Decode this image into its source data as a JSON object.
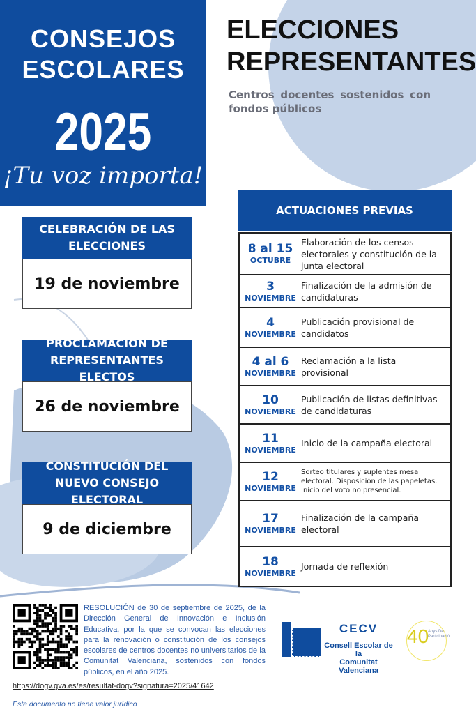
{
  "colors": {
    "primary": "#0f4c9e",
    "light": "#c4d3e8",
    "date": "#1451a6"
  },
  "hero": {
    "line1": "CONSEJOS",
    "line2": "ESCOLARES",
    "year": "2025",
    "slogan": "¡Tu voz importa!"
  },
  "title": {
    "line1": "ELECCIONES",
    "line2": "REPRESENTANTES"
  },
  "subtitle": "Centros docentes sostenidos con fondos públicos",
  "actuaciones": {
    "header": "ACTUACIONES PREVIAS",
    "rows": [
      {
        "day": "8 al 15",
        "month": "OCTUBRE",
        "text": "Elaboración de los censos electorales y constitución de la junta electoral"
      },
      {
        "day": "3",
        "month": "NOVIEMBRE",
        "text": "Finalización de la admisión de candidaturas"
      },
      {
        "day": "4",
        "month": "NOVIEMBRE",
        "text": "Publicación provisional de candidatos"
      },
      {
        "day": "4 al 6",
        "month": "NOVIEMBRE",
        "text": "Reclamación a la lista provisional"
      },
      {
        "day": "10",
        "month": "NOVIEMBRE",
        "text": "Publicación de listas definitivas de candidaturas"
      },
      {
        "day": "11",
        "month": "NOVIEMBRE",
        "text": "Inicio de la campaña electoral"
      },
      {
        "day": "12",
        "month": "NOVIEMBRE",
        "text": "Sorteo titulares y suplentes mesa electoral. Disposición de las papeletas. Inicio del voto no presencial."
      },
      {
        "day": "17",
        "month": "NOVIEMBRE",
        "text": "Finalización de la campaña electoral"
      },
      {
        "day": "18",
        "month": "NOVIEMBRE",
        "text": "Jornada de reflexión"
      }
    ]
  },
  "key_dates": [
    {
      "label": "CELEBRACIÓN DE LAS ELECCIONES",
      "date": "19 de noviembre"
    },
    {
      "label": "PROCLAMACIÓN DE REPRESENTANTES ELECTOS",
      "date": "26 de noviembre"
    },
    {
      "label": "CONSTITUCIÓN DEL NUEVO CONSEJO ELECTORAL",
      "date": "9 de diciembre"
    }
  ],
  "footer": {
    "resolution": "RESOLUCIÓN de 30 de septiembre de 2025, de la Dirección General de Innovación e Inclusión Educativa, por la que se convocan las elecciones para la renovación o constitución de los consejos escolares de centros docentes no universitarios de la Comunitat Valenciana, sostenidos con fondos públicos, en el año 2025.",
    "link": "https://dogv.gva.es/es/resultat-dogv?signatura=2025/41642",
    "disclaimer": "Este documento no tiene valor jurídico",
    "logo": {
      "acronym": "CECV",
      "name1": "Consell Escolar de la",
      "name2": "Comunitat Valenciana"
    },
    "anniversary": {
      "number": "40",
      "text": "Anys De Participació"
    }
  }
}
